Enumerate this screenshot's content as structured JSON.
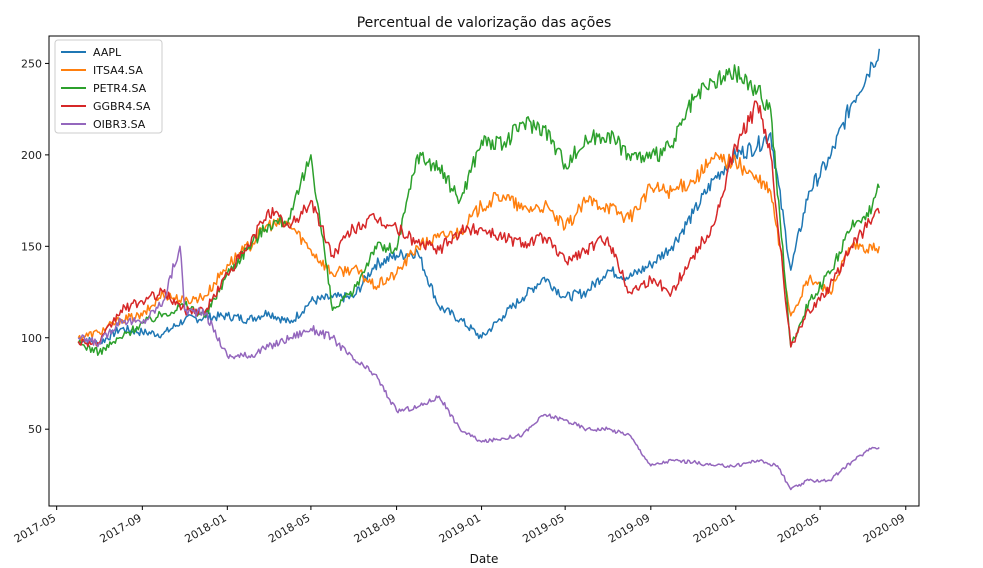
{
  "chart_data": {
    "type": "line",
    "title": "Percentual de valorização das ações",
    "xlabel": "Date",
    "ylabel": "",
    "x_ticks": [
      "2017-05",
      "2017-09",
      "2018-01",
      "2018-05",
      "2018-09",
      "2019-01",
      "2019-05",
      "2019-09",
      "2020-01",
      "2020-05",
      "2020-09"
    ],
    "y_ticks": [
      50,
      100,
      150,
      200,
      250
    ],
    "xlim": [
      "2017-04-20",
      "2020-09-20"
    ],
    "ylim": [
      8,
      265
    ],
    "grid": false,
    "legend_position": "top-left",
    "series": [
      {
        "name": "AAPL",
        "color": "#1f77b4",
        "points": [
          [
            "2017-06-01",
            100
          ],
          [
            "2017-07-01",
            97
          ],
          [
            "2017-08-01",
            105
          ],
          [
            "2017-09-01",
            103
          ],
          [
            "2017-10-01",
            102
          ],
          [
            "2017-11-01",
            110
          ],
          [
            "2017-12-01",
            111
          ],
          [
            "2018-01-01",
            112
          ],
          [
            "2018-02-01",
            110
          ],
          [
            "2018-03-01",
            114
          ],
          [
            "2018-04-01",
            108
          ],
          [
            "2018-05-01",
            120
          ],
          [
            "2018-06-01",
            122
          ],
          [
            "2018-07-01",
            122
          ],
          [
            "2018-08-01",
            140
          ],
          [
            "2018-09-01",
            145
          ],
          [
            "2018-10-01",
            147
          ],
          [
            "2018-11-01",
            117
          ],
          [
            "2018-12-01",
            110
          ],
          [
            "2019-01-01",
            100
          ],
          [
            "2019-02-01",
            112
          ],
          [
            "2019-03-01",
            122
          ],
          [
            "2019-04-01",
            133
          ],
          [
            "2019-05-01",
            122
          ],
          [
            "2019-06-01",
            125
          ],
          [
            "2019-07-01",
            137
          ],
          [
            "2019-08-01",
            133
          ],
          [
            "2019-09-01",
            140
          ],
          [
            "2019-10-01",
            150
          ],
          [
            "2019-11-01",
            168
          ],
          [
            "2019-12-01",
            187
          ],
          [
            "2020-01-01",
            200
          ],
          [
            "2020-02-01",
            205
          ],
          [
            "2020-02-20",
            212
          ],
          [
            "2020-03-20",
            137
          ],
          [
            "2020-04-15",
            180
          ],
          [
            "2020-05-15",
            198
          ],
          [
            "2020-06-15",
            228
          ],
          [
            "2020-07-15",
            250
          ],
          [
            "2020-07-25",
            258
          ]
        ]
      },
      {
        "name": "ITSA4.SA",
        "color": "#ff7f0e",
        "points": [
          [
            "2017-06-01",
            100
          ],
          [
            "2017-07-01",
            103
          ],
          [
            "2017-08-01",
            110
          ],
          [
            "2017-09-01",
            112
          ],
          [
            "2017-10-01",
            124
          ],
          [
            "2017-11-01",
            120
          ],
          [
            "2017-12-01",
            123
          ],
          [
            "2018-01-01",
            140
          ],
          [
            "2018-02-01",
            150
          ],
          [
            "2018-03-01",
            162
          ],
          [
            "2018-04-01",
            162
          ],
          [
            "2018-05-01",
            148
          ],
          [
            "2018-06-01",
            135
          ],
          [
            "2018-07-01",
            138
          ],
          [
            "2018-08-01",
            128
          ],
          [
            "2018-09-01",
            135
          ],
          [
            "2018-10-01",
            150
          ],
          [
            "2018-11-01",
            155
          ],
          [
            "2018-12-01",
            158
          ],
          [
            "2019-01-01",
            172
          ],
          [
            "2019-02-01",
            178
          ],
          [
            "2019-03-01",
            170
          ],
          [
            "2019-04-01",
            172
          ],
          [
            "2019-05-01",
            160
          ],
          [
            "2019-06-01",
            175
          ],
          [
            "2019-07-01",
            172
          ],
          [
            "2019-08-01",
            165
          ],
          [
            "2019-09-01",
            182
          ],
          [
            "2019-10-01",
            180
          ],
          [
            "2019-11-01",
            186
          ],
          [
            "2019-12-01",
            198
          ],
          [
            "2020-01-01",
            196
          ],
          [
            "2020-02-01",
            186
          ],
          [
            "2020-02-20",
            180
          ],
          [
            "2020-03-20",
            112
          ],
          [
            "2020-04-15",
            132
          ],
          [
            "2020-05-15",
            125
          ],
          [
            "2020-06-15",
            150
          ],
          [
            "2020-07-15",
            148
          ],
          [
            "2020-07-25",
            150
          ]
        ]
      },
      {
        "name": "PETR4.SA",
        "color": "#2ca02c",
        "points": [
          [
            "2017-06-01",
            97
          ],
          [
            "2017-07-01",
            92
          ],
          [
            "2017-08-01",
            100
          ],
          [
            "2017-09-01",
            108
          ],
          [
            "2017-10-01",
            113
          ],
          [
            "2017-11-01",
            118
          ],
          [
            "2017-12-01",
            112
          ],
          [
            "2018-01-01",
            135
          ],
          [
            "2018-02-01",
            150
          ],
          [
            "2018-03-01",
            162
          ],
          [
            "2018-04-01",
            165
          ],
          [
            "2018-05-01",
            200
          ],
          [
            "2018-06-01",
            115
          ],
          [
            "2018-07-01",
            125
          ],
          [
            "2018-08-01",
            150
          ],
          [
            "2018-09-01",
            148
          ],
          [
            "2018-10-01",
            200
          ],
          [
            "2018-11-01",
            193
          ],
          [
            "2018-12-01",
            175
          ],
          [
            "2019-01-01",
            208
          ],
          [
            "2019-02-01",
            205
          ],
          [
            "2019-03-01",
            218
          ],
          [
            "2019-04-01",
            215
          ],
          [
            "2019-05-01",
            195
          ],
          [
            "2019-06-01",
            208
          ],
          [
            "2019-07-01",
            212
          ],
          [
            "2019-08-01",
            200
          ],
          [
            "2019-09-01",
            198
          ],
          [
            "2019-10-01",
            205
          ],
          [
            "2019-11-01",
            230
          ],
          [
            "2019-12-01",
            240
          ],
          [
            "2020-01-01",
            245
          ],
          [
            "2020-02-01",
            235
          ],
          [
            "2020-02-20",
            225
          ],
          [
            "2020-03-20",
            95
          ],
          [
            "2020-04-15",
            120
          ],
          [
            "2020-05-15",
            135
          ],
          [
            "2020-06-15",
            160
          ],
          [
            "2020-07-15",
            172
          ],
          [
            "2020-07-25",
            182
          ]
        ]
      },
      {
        "name": "GGBR4.SA",
        "color": "#d62728",
        "points": [
          [
            "2017-06-01",
            98
          ],
          [
            "2017-07-01",
            97
          ],
          [
            "2017-08-01",
            115
          ],
          [
            "2017-09-01",
            120
          ],
          [
            "2017-10-01",
            125
          ],
          [
            "2017-11-01",
            115
          ],
          [
            "2017-12-01",
            115
          ],
          [
            "2018-01-01",
            135
          ],
          [
            "2018-02-01",
            150
          ],
          [
            "2018-03-01",
            170
          ],
          [
            "2018-04-01",
            160
          ],
          [
            "2018-05-01",
            175
          ],
          [
            "2018-06-01",
            145
          ],
          [
            "2018-07-01",
            160
          ],
          [
            "2018-08-01",
            165
          ],
          [
            "2018-09-01",
            160
          ],
          [
            "2018-10-01",
            152
          ],
          [
            "2018-11-01",
            148
          ],
          [
            "2018-12-01",
            158
          ],
          [
            "2019-01-01",
            160
          ],
          [
            "2019-02-01",
            155
          ],
          [
            "2019-03-01",
            152
          ],
          [
            "2019-04-01",
            155
          ],
          [
            "2019-05-01",
            142
          ],
          [
            "2019-06-01",
            148
          ],
          [
            "2019-07-01",
            155
          ],
          [
            "2019-08-01",
            125
          ],
          [
            "2019-09-01",
            132
          ],
          [
            "2019-10-01",
            125
          ],
          [
            "2019-11-01",
            145
          ],
          [
            "2019-12-01",
            162
          ],
          [
            "2020-01-01",
            205
          ],
          [
            "2020-02-01",
            228
          ],
          [
            "2020-02-20",
            200
          ],
          [
            "2020-03-20",
            95
          ],
          [
            "2020-04-15",
            115
          ],
          [
            "2020-05-15",
            128
          ],
          [
            "2020-06-15",
            150
          ],
          [
            "2020-07-15",
            165
          ],
          [
            "2020-07-25",
            168
          ]
        ]
      },
      {
        "name": "OIBR3.SA",
        "color": "#9467bd",
        "points": [
          [
            "2017-06-01",
            100
          ],
          [
            "2017-07-01",
            97
          ],
          [
            "2017-08-01",
            110
          ],
          [
            "2017-09-01",
            108
          ],
          [
            "2017-10-01",
            120
          ],
          [
            "2017-10-25",
            150
          ],
          [
            "2017-11-01",
            115
          ],
          [
            "2017-12-01",
            113
          ],
          [
            "2018-01-01",
            90
          ],
          [
            "2018-02-01",
            90
          ],
          [
            "2018-03-01",
            95
          ],
          [
            "2018-04-01",
            100
          ],
          [
            "2018-05-01",
            105
          ],
          [
            "2018-06-01",
            100
          ],
          [
            "2018-07-01",
            88
          ],
          [
            "2018-08-01",
            80
          ],
          [
            "2018-09-01",
            60
          ],
          [
            "2018-10-01",
            62
          ],
          [
            "2018-11-01",
            68
          ],
          [
            "2018-12-01",
            50
          ],
          [
            "2019-01-01",
            43
          ],
          [
            "2019-02-01",
            45
          ],
          [
            "2019-03-01",
            47
          ],
          [
            "2019-04-01",
            58
          ],
          [
            "2019-05-01",
            55
          ],
          [
            "2019-06-01",
            50
          ],
          [
            "2019-07-01",
            50
          ],
          [
            "2019-08-01",
            47
          ],
          [
            "2019-09-01",
            30
          ],
          [
            "2019-10-01",
            33
          ],
          [
            "2019-11-01",
            32
          ],
          [
            "2019-12-01",
            30
          ],
          [
            "2020-01-01",
            30
          ],
          [
            "2020-02-01",
            33
          ],
          [
            "2020-03-01",
            30
          ],
          [
            "2020-03-20",
            17
          ],
          [
            "2020-04-15",
            22
          ],
          [
            "2020-05-15",
            22
          ],
          [
            "2020-06-15",
            32
          ],
          [
            "2020-07-15",
            40
          ],
          [
            "2020-07-25",
            40
          ]
        ]
      }
    ]
  }
}
